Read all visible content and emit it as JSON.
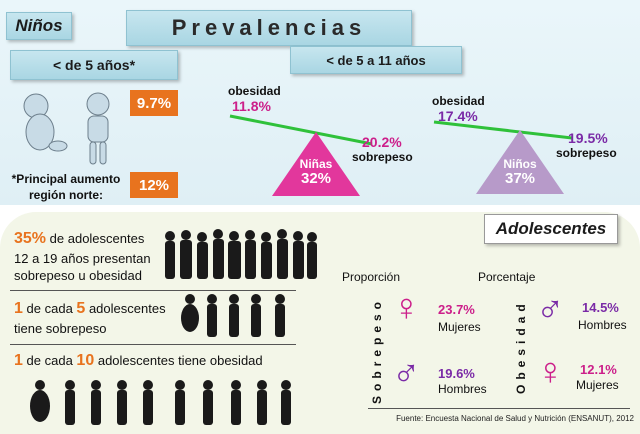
{
  "ninos": {
    "tag": "Niños",
    "title": "Prevalencias",
    "under5_label": "< de 5 años*",
    "under5_value_1": "9.7%",
    "under5_value_2": "12%",
    "note": "*Principal aumento región norte:",
    "age5to11_label": "< de 5 a 11 años",
    "ninas": {
      "obesidad_label": "obesidad",
      "obesidad_value": "11.8%",
      "sobrepeso_value": "20.2%",
      "sobrepeso_label": "sobrepeso",
      "group": "Niñas",
      "total": "32%"
    },
    "ninos_group": {
      "obesidad_label": "obesidad",
      "obesidad_value": "17.4%",
      "sobrepeso_value": "19.5%",
      "sobrepeso_label": "sobrepeso",
      "group": "Niños",
      "total": "37%"
    }
  },
  "adolescentes": {
    "tag": "Adolescentes",
    "stat1_num": "35%",
    "stat1_text": "de adolescentes",
    "stat1_line2": "12 a 19 años presentan",
    "stat1_line3": "sobrepeso u obesidad",
    "stat2_num1": "1",
    "stat2_mid": "de cada",
    "stat2_num2": "5",
    "stat2_text": "adolescentes",
    "stat2_line2": "tiene sobrepeso",
    "stat3_num1": "1",
    "stat3_mid": "de cada",
    "stat3_num2": "10",
    "stat3_text": "adolescentes tiene obesidad",
    "proporcion": "Proporción",
    "porcentaje": "Porcentaje",
    "sobrepeso_vertical": "Sobrepeso",
    "obesidad_vertical": "Obesidad",
    "sob_mujeres_value": "23.7%",
    "sob_mujeres_label": "Mujeres",
    "sob_hombres_value": "19.6%",
    "sob_hombres_label": "Hombres",
    "obe_hombres_value": "14.5%",
    "obe_hombres_label": "Hombres",
    "obe_mujeres_value": "12.1%",
    "obe_mujeres_label": "Mujeres",
    "female_symbol": "♀",
    "male_symbol": "♂",
    "source": "Fuente: Encuesta Nacional de Salud y Nutrición (ENSANUT), 2012"
  },
  "colors": {
    "orange": "#e8731e",
    "magenta": "#cc1f8a",
    "purple": "#7a2aa6",
    "green_line": "#2fc13a",
    "pink_triangle": "#e2379c",
    "lilac_triangle": "#b79ac9"
  }
}
